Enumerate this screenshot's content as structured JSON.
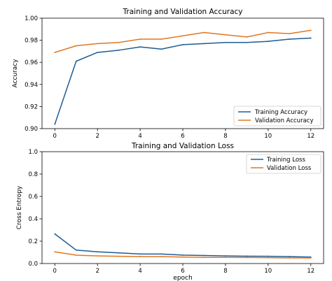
{
  "chart_data": [
    {
      "type": "line",
      "title": "Training and Validation Accuracy",
      "xlabel": "",
      "ylabel": "Accuracy",
      "x": [
        0,
        1,
        2,
        3,
        4,
        5,
        6,
        7,
        8,
        9,
        10,
        11,
        12
      ],
      "xlim": [
        -0.6,
        12.6
      ],
      "ylim": [
        0.9,
        1.0
      ],
      "xticks": [
        0,
        2,
        4,
        6,
        8,
        10,
        12
      ],
      "yticks": [
        0.9,
        0.92,
        0.94,
        0.96,
        0.98,
        1.0
      ],
      "xtick_labels": [
        "0",
        "2",
        "4",
        "6",
        "8",
        "10",
        "12"
      ],
      "ytick_labels": [
        "0.90",
        "0.92",
        "0.94",
        "0.96",
        "0.98",
        "1.00"
      ],
      "grid": false,
      "legend_position": "lower-right",
      "series": [
        {
          "name": "Training Accuracy",
          "color": "#1f5b92",
          "values": [
            0.904,
            0.961,
            0.969,
            0.971,
            0.974,
            0.972,
            0.976,
            0.977,
            0.978,
            0.978,
            0.979,
            0.981,
            0.982
          ]
        },
        {
          "name": "Validation Accuracy",
          "color": "#e07822",
          "values": [
            0.969,
            0.975,
            0.977,
            0.978,
            0.981,
            0.981,
            0.984,
            0.987,
            0.985,
            0.983,
            0.987,
            0.986,
            0.989
          ]
        }
      ]
    },
    {
      "type": "line",
      "title": "Training and Validation Loss",
      "xlabel": "epoch",
      "ylabel": "Cross Entropy",
      "x": [
        0,
        1,
        2,
        3,
        4,
        5,
        6,
        7,
        8,
        9,
        10,
        11,
        12
      ],
      "xlim": [
        -0.6,
        12.6
      ],
      "ylim": [
        0.0,
        1.0
      ],
      "xticks": [
        0,
        2,
        4,
        6,
        8,
        10,
        12
      ],
      "yticks": [
        0.0,
        0.2,
        0.4,
        0.6,
        0.8,
        1.0
      ],
      "xtick_labels": [
        "0",
        "2",
        "4",
        "6",
        "8",
        "10",
        "12"
      ],
      "ytick_labels": [
        "0.0",
        "0.2",
        "0.4",
        "0.6",
        "0.8",
        "1.0"
      ],
      "grid": false,
      "legend_position": "upper-right",
      "series": [
        {
          "name": "Training Loss",
          "color": "#1f5b92",
          "values": [
            0.265,
            0.12,
            0.105,
            0.095,
            0.085,
            0.085,
            0.075,
            0.072,
            0.068,
            0.066,
            0.065,
            0.062,
            0.058
          ]
        },
        {
          "name": "Validation Loss",
          "color": "#e07822",
          "values": [
            0.105,
            0.075,
            0.068,
            0.065,
            0.062,
            0.062,
            0.058,
            0.055,
            0.055,
            0.054,
            0.052,
            0.05,
            0.05
          ]
        }
      ]
    }
  ]
}
